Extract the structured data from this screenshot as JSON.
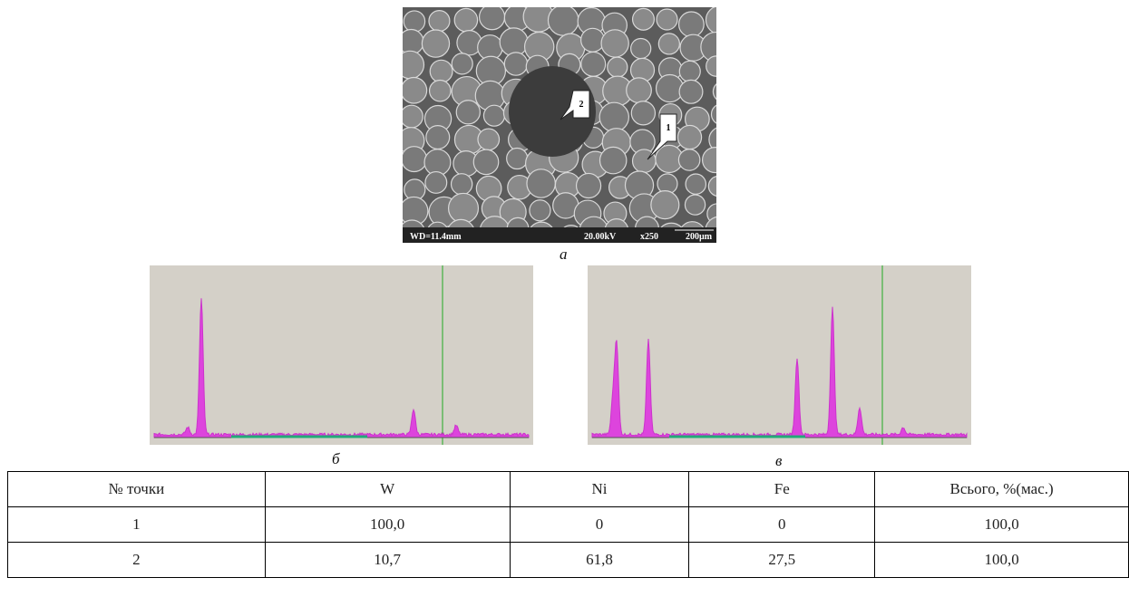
{
  "sem": {
    "wd": "WD=11.4mm",
    "voltage": "20.00kV",
    "magnification": "x250",
    "scale": "200µm",
    "callouts": [
      "1",
      "2"
    ]
  },
  "captions": [
    "а",
    "б",
    "в"
  ],
  "table": {
    "header": [
      "№ точки",
      "W",
      "Ni",
      "Fe",
      "Всього, %(мас.)"
    ],
    "rows": [
      [
        "1",
        "100,0",
        "0",
        "0",
        "100,0"
      ],
      [
        "2",
        "10,7",
        "61,8",
        "27,5",
        "100,0"
      ]
    ]
  }
}
